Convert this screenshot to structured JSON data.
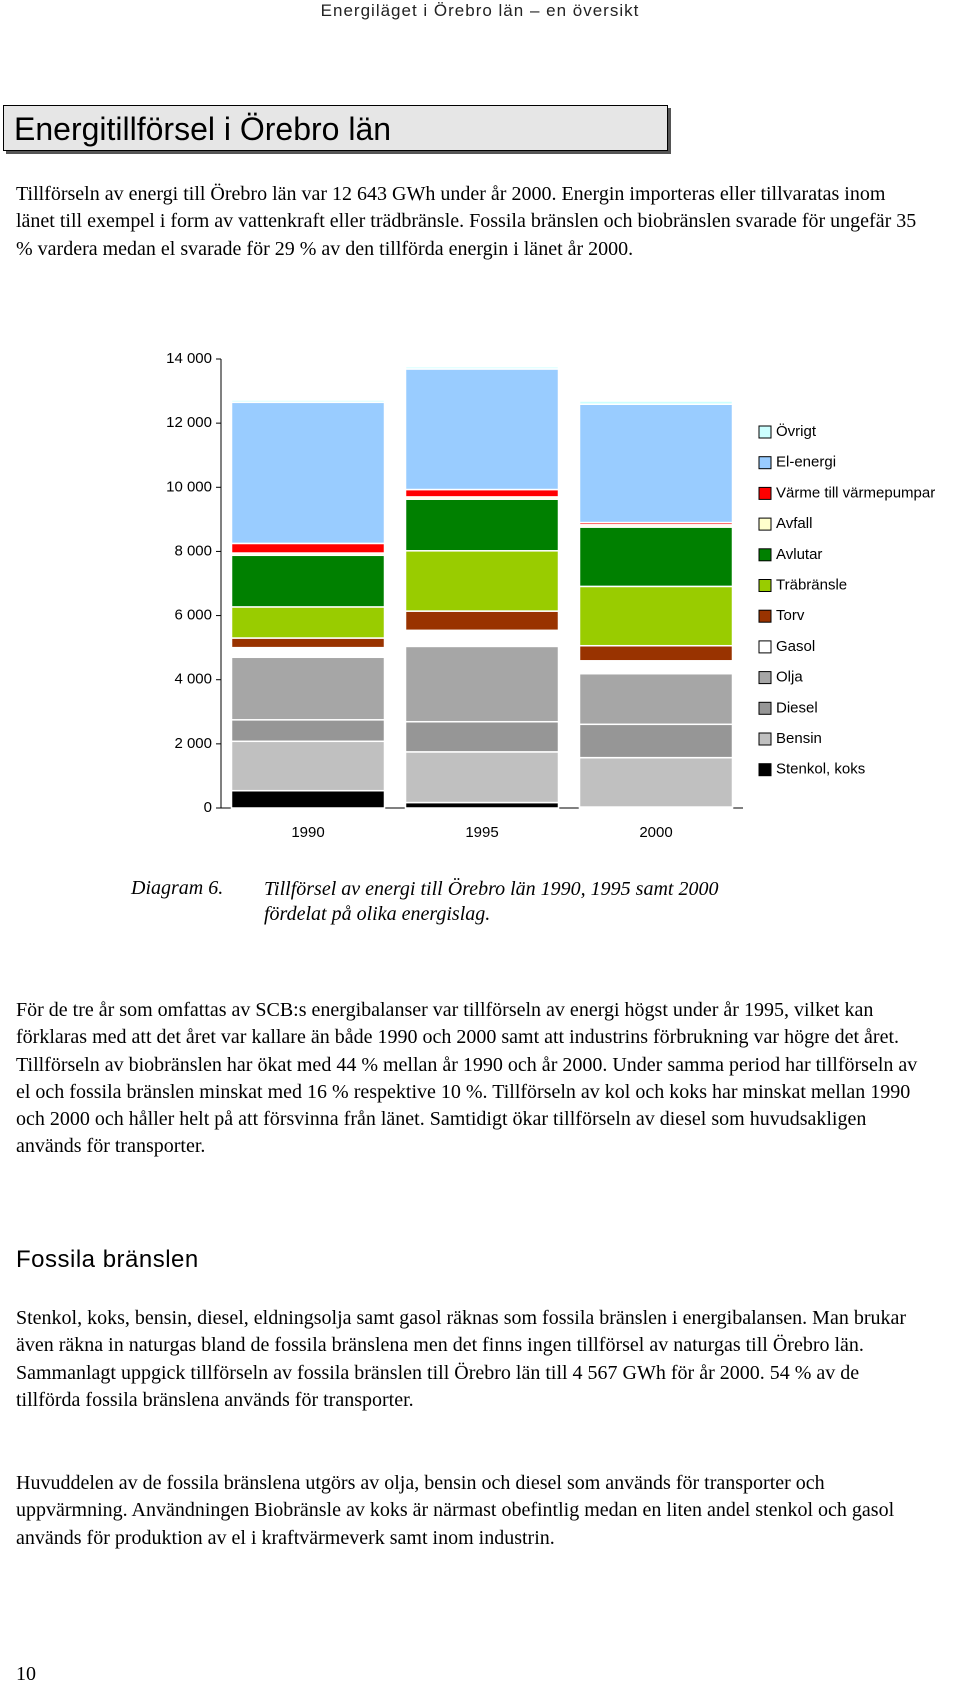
{
  "header": {
    "running_title": "Energiläget i Örebro län – en översikt"
  },
  "section": {
    "title": "Energitillförsel i Örebro län"
  },
  "paragraphs": [
    "Tillförseln av energi till Örebro län var 12 643 GWh under år 2000. Energin importeras eller tillvaratas inom länet till exempel i form av vattenkraft eller trädbränsle. Fossila bränslen och biobränslen svarade för ungefär 35 % vardera medan el svarade för 29 % av den tillförda energin i länet år 2000.",
    "För de tre år som omfattas av SCB:s energibalanser var tillförseln av energi högst under år 1995, vilket kan förklaras med att det året var kallare än både 1990 och 2000 samt att industrins förbrukning var högre det året. Tillförseln av biobränslen har ökat med 44 % mellan år 1990 och år 2000. Under samma period har tillförseln av el och fossila bränslen minskat med 16 % respektive 10 %. Tillförseln av kol och koks har minskat mellan 1990 och 2000 och håller helt på att försvinna från länet. Samtidigt ökar tillförseln av diesel som huvudsakligen används för transporter."
  ],
  "chart_data": {
    "type": "stacked_bar",
    "categories": [
      "1990",
      "1995",
      "2000"
    ],
    "ylim": [
      0,
      14000
    ],
    "yticks": [
      0,
      {
        "value": 2000,
        "label": "2 000"
      },
      {
        "value": 4000,
        "label": "4 000"
      },
      {
        "value": 6000,
        "label": "6 000"
      },
      {
        "value": 8000,
        "label": "8 000"
      },
      {
        "value": 10000,
        "label": "10 000"
      },
      {
        "value": 12000,
        "label": "12 000"
      },
      {
        "value": 14000,
        "label": "14 000"
      }
    ],
    "series": [
      {
        "name": "Stenkol, koks",
        "color": "#000000",
        "values": [
          540,
          170,
          30
        ]
      },
      {
        "name": "Bensin",
        "color": "#c0c0c0",
        "values": [
          1540,
          1580,
          1540
        ]
      },
      {
        "name": "Diesel",
        "color": "#969696",
        "values": [
          670,
          940,
          1040
        ]
      },
      {
        "name": "Olja",
        "color": "#a6a6a6",
        "values": [
          1950,
          2350,
          1580
        ]
      },
      {
        "name": "Gasol",
        "color": "#ffffff",
        "values": [
          300,
          500,
          400
        ]
      },
      {
        "name": "Torv",
        "color": "#993300",
        "values": [
          300,
          600,
          470
        ]
      },
      {
        "name": "Träbränsle",
        "color": "#99cc00",
        "values": [
          970,
          1880,
          1850
        ]
      },
      {
        "name": "Avlutar",
        "color": "#008000",
        "values": [
          1610,
          1610,
          1850
        ]
      },
      {
        "name": "Avfall",
        "color": "#ffffcc",
        "values": [
          70,
          70,
          70
        ]
      },
      {
        "name": "Värme till värmepumpar",
        "color": "#ff0000",
        "values": [
          300,
          230,
          70
        ]
      },
      {
        "name": "El-energi",
        "color": "#99ccff",
        "values": [
          4400,
          3760,
          3690
        ]
      },
      {
        "name": "Övrigt",
        "color": "#ccffff",
        "values": [
          70,
          70,
          100
        ]
      }
    ]
  },
  "caption": {
    "label": "Diagram 6.",
    "text": "Tillförsel av energi till Örebro län 1990, 1995 samt 2000 fördelat på olika energislag."
  },
  "subsection": {
    "title": "Fossila bränslen",
    "paragraphs": [
      "Stenkol, koks, bensin, diesel, eldningsolja samt gasol räknas som fossila bränslen i energibalansen. Man brukar även räkna in naturgas bland de fossila bränslena men det finns ingen tillförsel av naturgas till Örebro län. Sammanlagt uppgick tillförseln av fossila bränslen till Örebro län till 4 567 GWh för år 2000. 54 % av de tillförda fossila bränslena används för transporter.",
      "Huvuddelen av de fossila bränslena utgörs av olja, bensin och diesel som används för transporter och uppvärmning. Användningen Biobränsle av koks är närmast obefintlig medan en liten andel stenkol och gasol används för produktion av el i kraftvärmeverk samt inom industrin."
    ]
  },
  "footer": {
    "page_number": "10"
  }
}
